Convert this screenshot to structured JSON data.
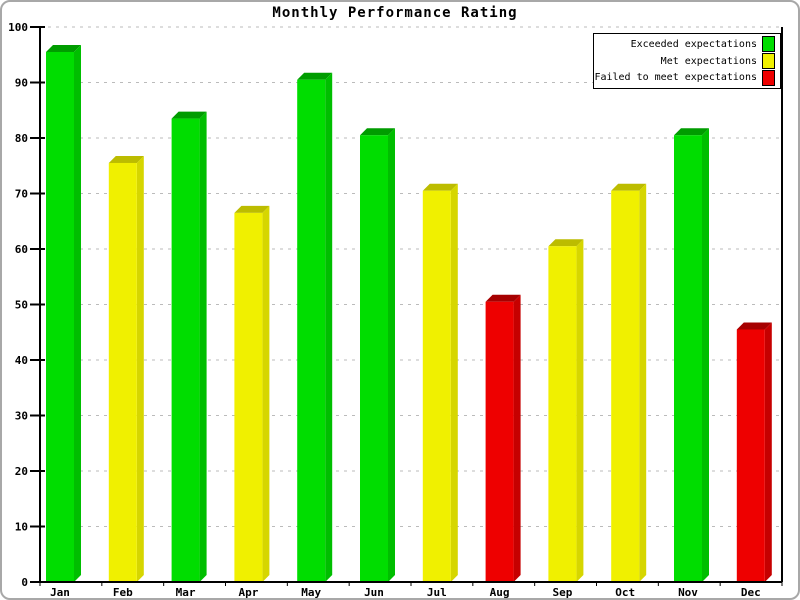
{
  "title": "Monthly Performance Rating",
  "legend": {
    "items": [
      {
        "label": "Exceeded expectations",
        "key": "exceeded",
        "color": "#00DD00"
      },
      {
        "label": "Met expectations",
        "key": "met",
        "color": "#F0F000"
      },
      {
        "label": "Failed to meet expectations",
        "key": "failed",
        "color": "#EE0000"
      }
    ]
  },
  "palette": {
    "exceeded": {
      "front": "#00DD00",
      "top": "#009C00",
      "side": "#00BE00"
    },
    "met": {
      "front": "#F0F000",
      "top": "#BCBC00",
      "side": "#D6D600"
    },
    "failed": {
      "front": "#EE0000",
      "top": "#A60000",
      "side": "#C60000"
    }
  },
  "axis": {
    "yticks": [
      0,
      10,
      20,
      30,
      40,
      50,
      60,
      70,
      80,
      90,
      100
    ]
  },
  "chart_data": {
    "type": "bar",
    "title": "Monthly Performance Rating",
    "categories": [
      "Jan",
      "Feb",
      "Mar",
      "Apr",
      "May",
      "Jun",
      "Jul",
      "Aug",
      "Sep",
      "Oct",
      "Nov",
      "Dec"
    ],
    "values": [
      95.5,
      75.5,
      83.5,
      66.5,
      90.5,
      80.5,
      70.5,
      50.5,
      60.5,
      70.5,
      80.5,
      45.5
    ],
    "bar_series": [
      "exceeded",
      "met",
      "exceeded",
      "met",
      "exceeded",
      "exceeded",
      "met",
      "failed",
      "met",
      "met",
      "exceeded",
      "failed"
    ],
    "series": [
      {
        "name": "Exceeded expectations",
        "color": "#00DD00",
        "months": [
          "Jan",
          "Mar",
          "May",
          "Jun",
          "Nov"
        ],
        "values": [
          95.5,
          83.5,
          90.5,
          80.5,
          80.5
        ]
      },
      {
        "name": "Met expectations",
        "color": "#F0F000",
        "months": [
          "Feb",
          "Apr",
          "Jul",
          "Sep",
          "Oct"
        ],
        "values": [
          75.5,
          66.5,
          70.5,
          60.5,
          70.5
        ]
      },
      {
        "name": "Failed to meet expectations",
        "color": "#EE0000",
        "months": [
          "Aug",
          "Dec"
        ],
        "values": [
          50.5,
          45.5
        ]
      }
    ],
    "xlabel": "",
    "ylabel": "",
    "ylim": [
      0,
      100
    ],
    "ytick_step": 10,
    "grid": "horizontal-dashed",
    "grid_color": "#BBBBBB",
    "legend_position": "top-right",
    "style": "3d-bars"
  }
}
